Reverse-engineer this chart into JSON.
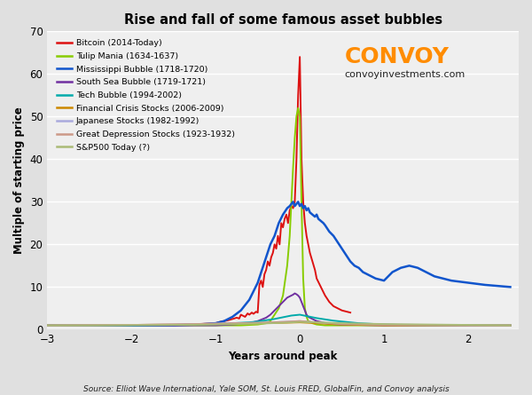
{
  "title": "Rise and fall of some famous asset bubbles",
  "xlabel": "Years around peak",
  "ylabel": "Multiple of starting price",
  "xlim": [
    -3,
    2.6
  ],
  "ylim": [
    0,
    70
  ],
  "yticks": [
    0,
    10,
    20,
    30,
    40,
    50,
    60,
    70
  ],
  "xticks": [
    -3,
    -2,
    -1,
    0,
    1,
    2
  ],
  "background_color": "#e8e8e8",
  "plot_bg_color": "#efefef",
  "source_text": "Source: Elliot Wave International, Yale SOM, St. Louis FRED, GlobalFin, and Convoy analysis",
  "convoy_text": "CONVOY",
  "convoy_url": "convoyinvestments.com",
  "convoy_color": "#ff8c00",
  "series": [
    {
      "name": "Bitcoin (2014-Today)",
      "color": "#dd1111",
      "lw": 1.4,
      "x": [
        -3.0,
        -2.8,
        -2.5,
        -2.3,
        -2.0,
        -1.9,
        -1.8,
        -1.7,
        -1.6,
        -1.5,
        -1.4,
        -1.3,
        -1.2,
        -1.1,
        -1.0,
        -0.95,
        -0.9,
        -0.85,
        -0.8,
        -0.78,
        -0.75,
        -0.72,
        -0.7,
        -0.67,
        -0.65,
        -0.62,
        -0.6,
        -0.57,
        -0.55,
        -0.52,
        -0.5,
        -0.48,
        -0.46,
        -0.44,
        -0.42,
        -0.4,
        -0.38,
        -0.36,
        -0.34,
        -0.32,
        -0.3,
        -0.28,
        -0.26,
        -0.24,
        -0.22,
        -0.2,
        -0.18,
        -0.16,
        -0.14,
        -0.12,
        -0.1,
        -0.08,
        -0.06,
        -0.04,
        -0.02,
        0.0,
        0.02,
        0.04,
        0.06,
        0.08,
        0.1,
        0.12,
        0.15,
        0.18,
        0.2,
        0.25,
        0.3,
        0.35,
        0.4,
        0.5,
        0.6
      ],
      "y": [
        1.0,
        1.0,
        1.0,
        1.0,
        1.0,
        1.0,
        1.05,
        1.05,
        1.1,
        1.1,
        1.1,
        1.2,
        1.3,
        1.4,
        1.5,
        1.8,
        2.0,
        2.2,
        2.5,
        2.6,
        2.8,
        2.6,
        3.5,
        3.2,
        3.0,
        3.8,
        3.5,
        4.0,
        3.7,
        4.2,
        4.0,
        10.5,
        11.5,
        10.0,
        13.0,
        14.0,
        16.0,
        15.0,
        17.0,
        18.0,
        20.0,
        19.0,
        22.0,
        20.0,
        25.0,
        24.0,
        26.0,
        27.0,
        25.0,
        28.0,
        29.0,
        28.5,
        30.0,
        40.0,
        55.0,
        64.0,
        40.0,
        30.0,
        25.0,
        22.0,
        20.0,
        18.0,
        16.0,
        14.0,
        12.0,
        10.0,
        8.0,
        6.5,
        5.5,
        4.5,
        4.0
      ]
    },
    {
      "name": "Tulip Mania (1634-1637)",
      "color": "#88cc00",
      "lw": 1.4,
      "x": [
        -3.0,
        -2.5,
        -2.0,
        -1.5,
        -1.0,
        -0.7,
        -0.5,
        -0.4,
        -0.35,
        -0.3,
        -0.25,
        -0.2,
        -0.15,
        -0.12,
        -0.1,
        -0.08,
        -0.06,
        -0.04,
        -0.02,
        0.0,
        0.02,
        0.04,
        0.06,
        0.08,
        0.1,
        0.15,
        0.2,
        0.3,
        0.5,
        1.0,
        1.5,
        2.0,
        2.5
      ],
      "y": [
        1.0,
        1.0,
        1.0,
        1.0,
        1.0,
        1.0,
        1.2,
        1.5,
        2.0,
        3.5,
        5.0,
        8.0,
        15.0,
        22.0,
        30.0,
        38.0,
        45.0,
        50.0,
        52.0,
        50.0,
        30.0,
        12.0,
        5.0,
        3.0,
        2.0,
        1.5,
        1.2,
        1.0,
        1.0,
        1.0,
        1.0,
        1.0,
        1.0
      ]
    },
    {
      "name": "Mississippi Bubble (1718-1720)",
      "color": "#1155cc",
      "lw": 1.8,
      "x": [
        -3.0,
        -2.5,
        -2.0,
        -1.5,
        -1.2,
        -1.0,
        -0.9,
        -0.8,
        -0.7,
        -0.6,
        -0.5,
        -0.45,
        -0.4,
        -0.35,
        -0.3,
        -0.25,
        -0.2,
        -0.15,
        -0.12,
        -0.1,
        -0.08,
        -0.06,
        -0.04,
        -0.02,
        0.0,
        0.02,
        0.04,
        0.06,
        0.08,
        0.1,
        0.12,
        0.15,
        0.18,
        0.2,
        0.22,
        0.25,
        0.28,
        0.3,
        0.35,
        0.4,
        0.45,
        0.5,
        0.55,
        0.6,
        0.65,
        0.7,
        0.75,
        0.8,
        0.85,
        0.9,
        1.0,
        1.1,
        1.2,
        1.3,
        1.4,
        1.5,
        1.6,
        1.7,
        1.8,
        2.0,
        2.2,
        2.5
      ],
      "y": [
        1.0,
        1.0,
        1.0,
        1.0,
        1.2,
        1.5,
        2.0,
        3.0,
        4.5,
        7.0,
        11.0,
        14.0,
        17.0,
        20.0,
        22.0,
        25.0,
        27.0,
        28.5,
        29.0,
        29.5,
        30.0,
        29.0,
        29.5,
        30.0,
        29.0,
        29.5,
        28.5,
        29.0,
        28.0,
        28.5,
        27.5,
        27.0,
        26.5,
        27.0,
        26.0,
        25.5,
        25.0,
        24.5,
        23.0,
        22.0,
        20.5,
        19.0,
        17.5,
        16.0,
        15.0,
        14.5,
        13.5,
        13.0,
        12.5,
        12.0,
        11.5,
        13.5,
        14.5,
        15.0,
        14.5,
        13.5,
        12.5,
        12.0,
        11.5,
        11.0,
        10.5,
        10.0
      ]
    },
    {
      "name": "South Sea Bubble (1719-1721)",
      "color": "#7030a0",
      "lw": 1.4,
      "x": [
        -3.0,
        -2.5,
        -2.0,
        -1.5,
        -1.0,
        -0.8,
        -0.6,
        -0.5,
        -0.4,
        -0.35,
        -0.3,
        -0.25,
        -0.2,
        -0.15,
        -0.1,
        -0.08,
        -0.06,
        -0.04,
        -0.02,
        0.0,
        0.02,
        0.04,
        0.06,
        0.08,
        0.1,
        0.15,
        0.2,
        0.25,
        0.3,
        0.4,
        0.5,
        0.7,
        1.0,
        1.5,
        2.0,
        2.5
      ],
      "y": [
        1.0,
        1.0,
        1.0,
        1.0,
        1.0,
        1.2,
        1.5,
        2.0,
        2.8,
        3.5,
        4.5,
        5.5,
        6.5,
        7.5,
        8.0,
        8.2,
        8.5,
        8.3,
        8.0,
        7.5,
        6.5,
        5.5,
        4.5,
        3.5,
        3.0,
        2.5,
        2.0,
        1.8,
        1.5,
        1.3,
        1.2,
        1.1,
        1.0,
        1.0,
        1.0,
        1.0
      ]
    },
    {
      "name": "Tech Bubble (1994-2002)",
      "color": "#00aaaa",
      "lw": 1.4,
      "x": [
        -3.0,
        -2.5,
        -2.0,
        -1.5,
        -1.2,
        -1.0,
        -0.8,
        -0.6,
        -0.5,
        -0.4,
        -0.3,
        -0.2,
        -0.15,
        -0.1,
        -0.05,
        0.0,
        0.05,
        0.1,
        0.15,
        0.2,
        0.3,
        0.4,
        0.5,
        0.6,
        0.7,
        0.8,
        1.0,
        1.2,
        1.5,
        2.0,
        2.5
      ],
      "y": [
        1.0,
        1.0,
        1.0,
        1.1,
        1.2,
        1.3,
        1.5,
        1.7,
        1.9,
        2.2,
        2.5,
        2.9,
        3.1,
        3.3,
        3.4,
        3.5,
        3.3,
        3.1,
        2.9,
        2.7,
        2.4,
        2.1,
        1.9,
        1.7,
        1.5,
        1.4,
        1.2,
        1.1,
        1.0,
        1.0,
        1.0
      ]
    },
    {
      "name": "Financial Crisis Stocks (2006-2009)",
      "color": "#cc8800",
      "lw": 1.4,
      "x": [
        -3.0,
        -2.5,
        -2.0,
        -1.5,
        -1.0,
        -0.5,
        -0.2,
        0.0,
        0.2,
        0.5,
        1.0,
        1.5,
        2.0,
        2.5
      ],
      "y": [
        1.0,
        1.05,
        1.1,
        1.2,
        1.3,
        1.5,
        1.6,
        1.7,
        1.5,
        1.2,
        1.0,
        1.0,
        1.0,
        1.0
      ]
    },
    {
      "name": "Japanese Stocks (1982-1992)",
      "color": "#aaaadd",
      "lw": 1.4,
      "x": [
        -3.0,
        -2.5,
        -2.0,
        -1.5,
        -1.0,
        -0.5,
        -0.2,
        0.0,
        0.2,
        0.5,
        1.0,
        1.5,
        2.0,
        2.5
      ],
      "y": [
        1.0,
        1.05,
        1.1,
        1.2,
        1.4,
        1.6,
        1.8,
        2.0,
        1.7,
        1.4,
        1.2,
        1.1,
        1.0,
        1.0
      ]
    },
    {
      "name": "Great Depression Stocks (1923-1932)",
      "color": "#cc9988",
      "lw": 1.4,
      "x": [
        -3.0,
        -2.5,
        -2.0,
        -1.5,
        -1.0,
        -0.5,
        -0.2,
        0.0,
        0.2,
        0.5,
        1.0,
        1.5,
        2.0,
        2.5
      ],
      "y": [
        1.0,
        1.05,
        1.1,
        1.2,
        1.4,
        1.6,
        1.8,
        2.0,
        1.7,
        1.3,
        1.1,
        1.0,
        1.0,
        1.0
      ]
    },
    {
      "name": "S&P500 Today (?)",
      "color": "#aabb77",
      "lw": 1.4,
      "x": [
        -3.0,
        -2.5,
        -2.0,
        -1.5,
        -1.0,
        -0.5,
        -0.2,
        0.0,
        0.2,
        0.5,
        1.0,
        1.5,
        2.0,
        2.5
      ],
      "y": [
        1.0,
        1.0,
        1.05,
        1.1,
        1.2,
        1.4,
        1.6,
        1.8,
        1.7,
        1.5,
        1.3,
        1.2,
        1.1,
        1.0
      ]
    }
  ]
}
